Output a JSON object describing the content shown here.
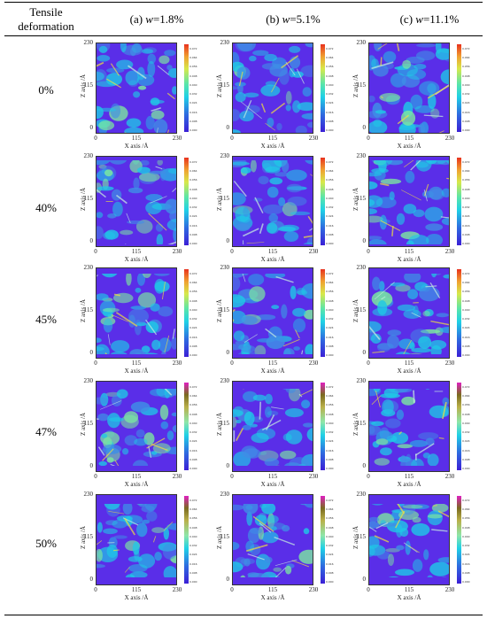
{
  "header": {
    "row_label_title_line1": "Tensile",
    "row_label_title_line2": "deformation",
    "columns": [
      {
        "prefix": "(a) ",
        "var": "w",
        "value": "=1.8%"
      },
      {
        "prefix": "(b) ",
        "var": "w",
        "value": "=5.1%"
      },
      {
        "prefix": "(c) ",
        "var": "w",
        "value": "=11.1%"
      }
    ]
  },
  "rows": [
    {
      "label": "0%"
    },
    {
      "label": "40%"
    },
    {
      "label": "45%"
    },
    {
      "label": "47%"
    },
    {
      "label": "50%"
    }
  ],
  "axes": {
    "x_label": "X axis /Å",
    "y_label": "Z axis /Å",
    "x_ticks": [
      "0",
      "115",
      "230"
    ],
    "y_ticks": [
      "230",
      "115",
      "0"
    ],
    "colorbar_ticks": [
      "0.072",
      "0.064",
      "0.056",
      "0.048",
      "0.040",
      "0.032",
      "0.024",
      "0.016",
      "0.008",
      "0.000"
    ]
  },
  "colors": {
    "background_low": "#5a2ee8",
    "mid": "#1fc8e6",
    "high": "#f0e040"
  }
}
